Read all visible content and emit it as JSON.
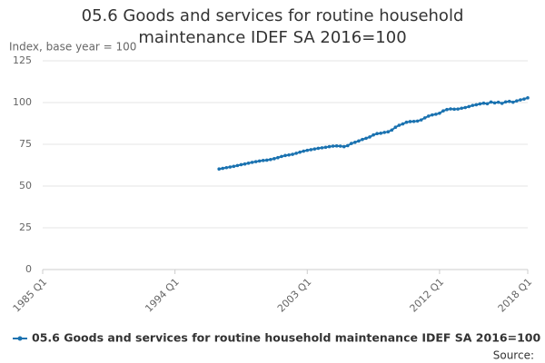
{
  "chart_data": {
    "type": "line",
    "title": "05.6 Goods and services for routine household maintenance IDEF SA 2016=100",
    "y_label": "Index, base year = 100",
    "source": "Source:",
    "categories": [
      "1985 Q1",
      null,
      null,
      null,
      null,
      null,
      null,
      null,
      null,
      null,
      null,
      null,
      null,
      null,
      null,
      null,
      null,
      null,
      null,
      null,
      null,
      null,
      null,
      null,
      null,
      null,
      null,
      null,
      null,
      null,
      null,
      null,
      null,
      null,
      null,
      null,
      "1994 Q1",
      null,
      null,
      null,
      null,
      null,
      null,
      null,
      null,
      null,
      null,
      null,
      null,
      null,
      null,
      null,
      null,
      null,
      null,
      null,
      null,
      null,
      null,
      null,
      null,
      null,
      null,
      null,
      null,
      null,
      null,
      null,
      null,
      null,
      null,
      null,
      "2003 Q1",
      null,
      null,
      null,
      null,
      null,
      null,
      null,
      null,
      null,
      null,
      null,
      null,
      null,
      null,
      null,
      null,
      null,
      null,
      null,
      null,
      null,
      null,
      null,
      null,
      null,
      null,
      null,
      null,
      null,
      null,
      null,
      null,
      null,
      null,
      null,
      "2012 Q1",
      null,
      null,
      null,
      null,
      null,
      null,
      null,
      null,
      null,
      null,
      null,
      null,
      null,
      null,
      null,
      null,
      null,
      null,
      null,
      null,
      null,
      null,
      null,
      "2018 Q1"
    ],
    "series": [
      {
        "name": "05.6 Goods and services for routine household maintenance IDEF SA 2016=100",
        "color": "#1a72b0",
        "values": [
          null,
          null,
          null,
          null,
          null,
          null,
          null,
          null,
          null,
          null,
          null,
          null,
          null,
          null,
          null,
          null,
          null,
          null,
          null,
          null,
          null,
          null,
          null,
          null,
          null,
          null,
          null,
          null,
          null,
          null,
          null,
          null,
          null,
          null,
          null,
          null,
          null,
          null,
          null,
          null,
          null,
          null,
          null,
          null,
          null,
          null,
          null,
          null,
          60.2,
          60.6,
          61.0,
          61.4,
          61.8,
          62.3,
          62.8,
          63.2,
          63.7,
          64.2,
          64.6,
          65.0,
          65.3,
          65.5,
          65.9,
          66.4,
          67.0,
          67.7,
          68.3,
          68.6,
          69.0,
          69.6,
          70.3,
          70.9,
          71.4,
          71.8,
          72.2,
          72.6,
          72.9,
          73.2,
          73.6,
          73.9,
          74.0,
          73.9,
          73.6,
          74.2,
          75.5,
          76.2,
          77.0,
          77.9,
          78.6,
          79.4,
          80.6,
          81.4,
          81.6,
          82.1,
          82.5,
          83.5,
          85.2,
          86.4,
          87.2,
          88.2,
          88.6,
          88.7,
          88.9,
          89.6,
          90.8,
          91.9,
          92.6,
          93.0,
          93.6,
          95.0,
          95.8,
          96.2,
          96.0,
          96.1,
          96.6,
          97.0,
          97.6,
          98.3,
          98.7,
          99.2,
          99.6,
          99.3,
          100.3,
          99.8,
          100.2,
          99.5,
          100.4,
          100.7,
          100.2,
          101.0,
          101.6,
          102.1,
          102.8
        ]
      }
    ],
    "ylim": [
      0,
      125
    ],
    "yticks": [
      0,
      25,
      50,
      75,
      100,
      125
    ],
    "grid": true
  }
}
